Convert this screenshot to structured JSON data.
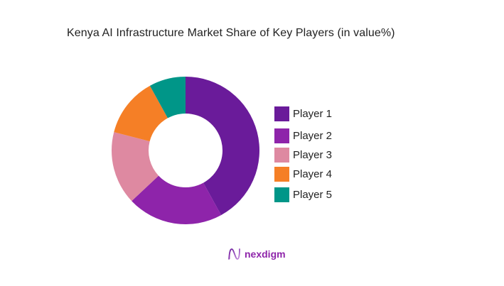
{
  "title": "Kenya AI Infrastructure Market Share of Key Players (in value%)",
  "brand": {
    "name": "nexdigm",
    "icon": "nexdigm-logo-icon",
    "color": "#8E24AA"
  },
  "chart_data": {
    "type": "pie",
    "variant": "donut",
    "title": "Kenya AI Infrastructure Market Share of Key Players (in value%)",
    "categories": [
      "Player 1",
      "Player 2",
      "Player 3",
      "Player 4",
      "Player 5"
    ],
    "values": [
      42,
      21,
      16,
      13,
      8
    ],
    "colors": [
      "#6A1B9A",
      "#8E24AA",
      "#DE89A1",
      "#F57F26",
      "#009688"
    ],
    "start_angle": "12 o'clock, clockwise",
    "legend_position": "right",
    "data_labels": false
  },
  "legend": {
    "items": [
      {
        "label": "Player 1",
        "color": "#6A1B9A"
      },
      {
        "label": "Player 2",
        "color": "#8E24AA"
      },
      {
        "label": "Player 3",
        "color": "#DE89A1"
      },
      {
        "label": "Player 4",
        "color": "#F57F26"
      },
      {
        "label": "Player 5",
        "color": "#009688"
      }
    ]
  }
}
